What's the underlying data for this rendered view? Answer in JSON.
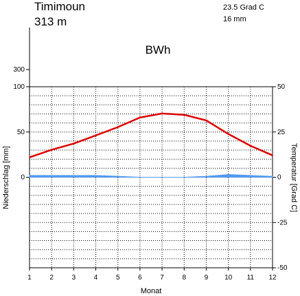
{
  "chart_data": {
    "type": "line",
    "title": "Timimoun",
    "subtitle": "313 m",
    "annotations": [
      "23.5 Grad C",
      "16 mm"
    ],
    "climate_class": "BWh",
    "xlabel": "Monat",
    "ylabel": "Niederschlag [mm]",
    "y2label": "Temperatur [Grad C]",
    "x": [
      1,
      2,
      3,
      4,
      5,
      6,
      7,
      8,
      9,
      10,
      11,
      12
    ],
    "xlim": [
      1,
      12
    ],
    "xticks": [
      1,
      2,
      3,
      4,
      5,
      6,
      7,
      8,
      9,
      10,
      11,
      12
    ],
    "ylim": [
      -100,
      100
    ],
    "yticks": [
      0,
      50,
      100
    ],
    "yticks_upper": [
      300
    ],
    "y2lim": [
      -50,
      50
    ],
    "y2ticks": [
      -50,
      -25,
      0,
      25,
      50
    ],
    "y2minorticks": [
      -45,
      -40,
      -35,
      -30,
      -20,
      -15,
      -10,
      -5,
      5,
      10,
      15,
      20,
      30,
      35,
      40,
      45
    ],
    "grid": true,
    "series": [
      {
        "name": "Temperatur",
        "color": "#dd0000",
        "axis": "y2",
        "values": [
          11.0,
          15.2,
          18.6,
          23.1,
          27.7,
          33.0,
          35.2,
          34.5,
          31.4,
          23.9,
          17.4,
          12.1
        ]
      },
      {
        "name": "Niederschlag",
        "color": "#5599ee",
        "axis": "y",
        "values": [
          2,
          2,
          2,
          2,
          1,
          0,
          0,
          0,
          1,
          3,
          2,
          1
        ]
      }
    ]
  }
}
